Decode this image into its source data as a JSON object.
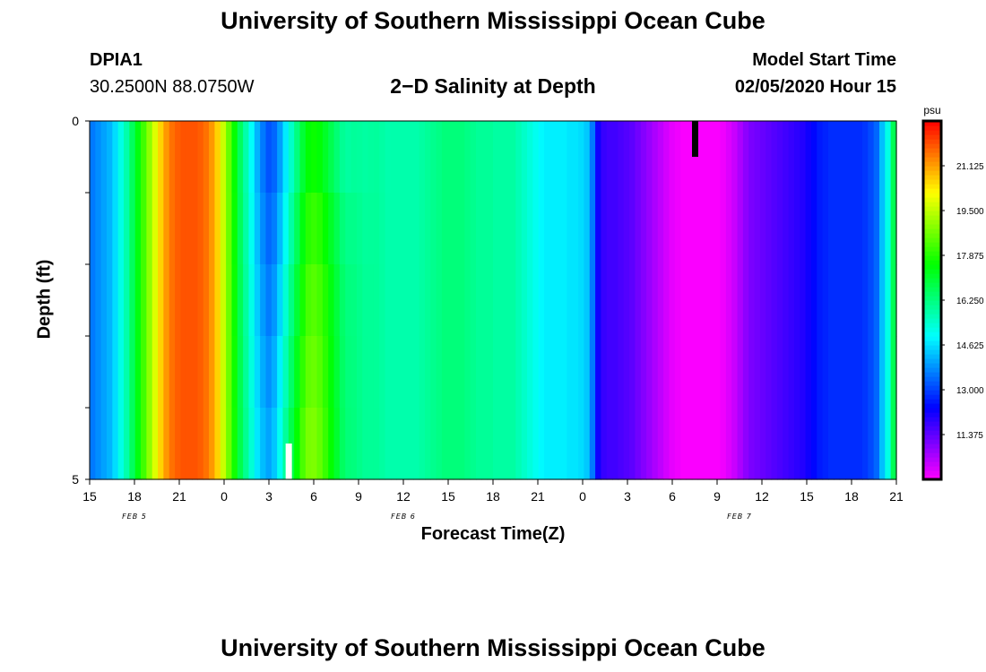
{
  "header": {
    "title": "University of Southern Mississippi Ocean Cube",
    "station_id": "DPIA1",
    "station_coords": "30.2500N 88.0750W",
    "plot_title": "2−D Salinity at Depth",
    "start_label": "Model Start Time",
    "start_value": "02/05/2020 Hour 15"
  },
  "footer": {
    "title": "University of Southern Mississippi Ocean Cube"
  },
  "chart_data": {
    "type": "heatmap",
    "title": "2−D Salinity at Depth",
    "xlabel": "Forecast Time(Z)",
    "ylabel": "Depth (ft)",
    "y_tick_labels": [
      {
        "depth": 0,
        "label": "0"
      },
      {
        "depth": 1,
        "label": ""
      },
      {
        "depth": 2,
        "label": ""
      },
      {
        "depth": 3,
        "label": ""
      },
      {
        "depth": 4,
        "label": ""
      },
      {
        "depth": 5,
        "label": "5"
      }
    ],
    "ylim": [
      0,
      5
    ],
    "xlim_hours": [
      0,
      54
    ],
    "x_tick_labels": [
      "15",
      "18",
      "21",
      "0",
      "3",
      "6",
      "9",
      "12",
      "15",
      "18",
      "21",
      "0",
      "3",
      "6",
      "9",
      "12",
      "15",
      "18",
      "21"
    ],
    "date_labels": [
      {
        "hour": 3,
        "label": "FEB 5"
      },
      {
        "hour": 21,
        "label": "FEB 6"
      },
      {
        "hour": 43.5,
        "label": "FEB 7"
      }
    ],
    "depth_layers": [
      0.5,
      1.5,
      2.5,
      3.5,
      4.5
    ],
    "colorbar": {
      "units": "psu",
      "min": 9.75,
      "max": 22.75,
      "tick_values": [
        11.375,
        13.0,
        14.625,
        16.25,
        17.875,
        19.5,
        21.125
      ],
      "tick_labels": [
        "11.375",
        "13.000",
        "14.625",
        "16.250",
        "17.875",
        "19.500",
        "21.125"
      ]
    },
    "nowcast_marker_hours": 40.5,
    "surface_salinity_psu_by_hour": [
      13.6,
      13.8,
      14.0,
      14.2,
      14.6,
      15.2,
      15.8,
      16.6,
      17.4,
      18.2,
      19.0,
      19.8,
      20.6,
      21.2,
      21.6,
      21.8,
      21.9,
      21.9,
      21.9,
      21.8,
      21.6,
      21.2,
      20.6,
      19.6,
      18.6,
      17.6,
      16.6,
      15.8,
      15.0,
      14.2,
      13.6,
      13.2,
      13.4,
      14.0,
      14.8,
      15.6,
      16.4,
      17.2,
      17.8,
      18.0,
      17.9,
      17.6,
      17.2,
      16.8,
      16.4,
      16.2,
      16.2,
      16.1,
      16.0,
      16.0,
      16.0,
      15.9,
      15.8,
      15.8,
      15.8,
      15.8,
      15.8,
      15.8,
      15.9,
      16.0,
      16.1,
      16.2,
      16.3,
      16.3,
      16.3,
      16.3,
      16.2,
      16.1,
      16.0,
      16.0,
      16.0,
      15.9,
      15.9,
      15.9,
      15.9,
      15.7,
      15.5,
      15.3,
      15.1,
      14.9,
      14.8,
      14.8,
      14.8,
      14.8,
      14.7,
      14.7,
      14.6,
      14.4,
      13.6,
      12.2,
      11.8,
      11.7,
      11.7,
      11.6,
      11.5,
      11.4,
      11.2,
      11.0,
      10.8,
      10.6,
      10.4,
      10.2,
      10.0,
      9.9,
      9.8,
      9.8,
      9.8,
      9.8,
      9.8,
      9.8,
      9.8,
      9.9,
      10.1,
      10.3,
      10.6,
      10.9,
      11.1,
      11.2,
      11.3,
      11.4,
      11.5,
      11.6,
      11.7,
      11.8,
      11.9,
      12.0,
      12.2,
      12.4,
      12.6,
      12.7,
      12.8,
      12.8,
      12.8,
      12.8,
      12.8,
      12.8,
      12.9,
      13.1,
      13.4,
      14.3,
      15.2,
      16.7
    ]
  }
}
